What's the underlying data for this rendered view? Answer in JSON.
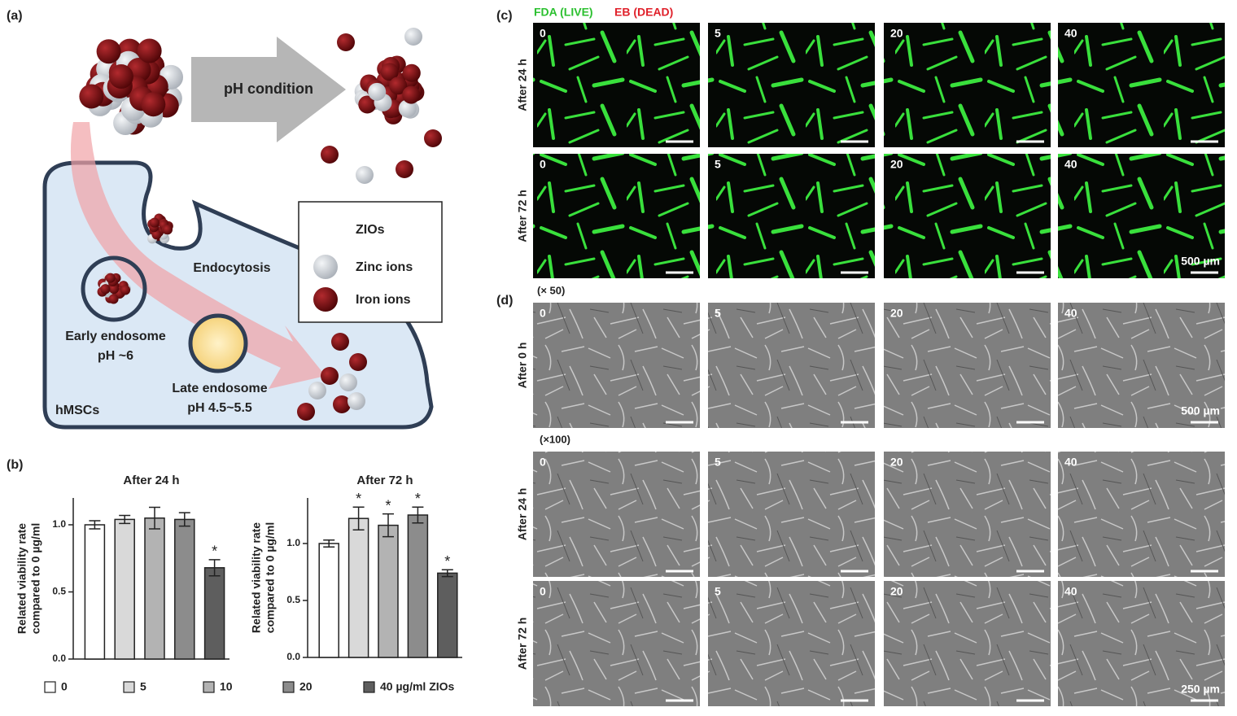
{
  "panel_a": {
    "label": "(a)",
    "condition": "pH condition",
    "endocytosis": "Endocytosis",
    "early_endosome": [
      "Early endosome",
      "pH ~6"
    ],
    "late_endosome": [
      "Late endosome",
      "pH 4.5~5.5"
    ],
    "cell": "hMSCs",
    "legend": [
      "ZIOs",
      "Zinc ions",
      "Iron ions"
    ]
  },
  "panel_b": {
    "label": "(b)",
    "legend": {
      "labels": [
        "0",
        "5",
        "10",
        "20",
        "40 µg/ml ZIOs"
      ],
      "colors": [
        "#ffffff",
        "#d9d9d9",
        "#b3b3b3",
        "#8c8c8c",
        "#5e5e5e"
      ]
    }
  },
  "chart_data": [
    {
      "type": "bar",
      "title": "After 24 h",
      "ylabel": [
        "Related viability rate",
        "compared to 0 µg/ml"
      ],
      "values": [
        1.0,
        1.04,
        1.05,
        1.04,
        0.68
      ],
      "errors": [
        0.03,
        0.03,
        0.08,
        0.05,
        0.06
      ],
      "significance": [
        null,
        null,
        null,
        null,
        "*"
      ],
      "ylim": [
        0,
        1.2
      ],
      "yticks": [
        {
          "value": 0,
          "label": "0.0"
        },
        {
          "value": 0.5,
          "label": "0.5"
        },
        {
          "value": 1,
          "label": "1.0"
        }
      ]
    },
    {
      "type": "bar",
      "title": "After 72 h",
      "ylabel": [
        "Related viability rate",
        "compared to 0 µg/ml"
      ],
      "values": [
        1.0,
        1.22,
        1.16,
        1.25,
        0.74
      ],
      "errors": [
        0.03,
        0.1,
        0.1,
        0.07,
        0.03
      ],
      "significance": [
        null,
        "*",
        "*",
        "*",
        "*"
      ],
      "ylim": [
        0,
        1.4
      ],
      "yticks": [
        {
          "value": 0,
          "label": "0.0"
        },
        {
          "value": 0.5,
          "label": "0.5"
        },
        {
          "value": 1,
          "label": "1.0"
        }
      ]
    }
  ],
  "panel_c": {
    "label": "(c)",
    "stain_live": "FDA (LIVE)",
    "stain_dead": "EB (DEAD)",
    "rows": [
      "After 24 h",
      "After 72 h"
    ],
    "columns": [
      "0",
      "5",
      "20",
      "40"
    ],
    "scale_bar": "500 µm"
  },
  "panel_d": {
    "label": "(d)",
    "magnifications": [
      "(× 50)",
      "(×100)"
    ],
    "rows": [
      "After 0 h",
      "After 24 h",
      "After 72 h"
    ],
    "columns": [
      "0",
      "5",
      "20",
      "40"
    ],
    "scale_bars": [
      "500 µm",
      "250 µm"
    ]
  }
}
